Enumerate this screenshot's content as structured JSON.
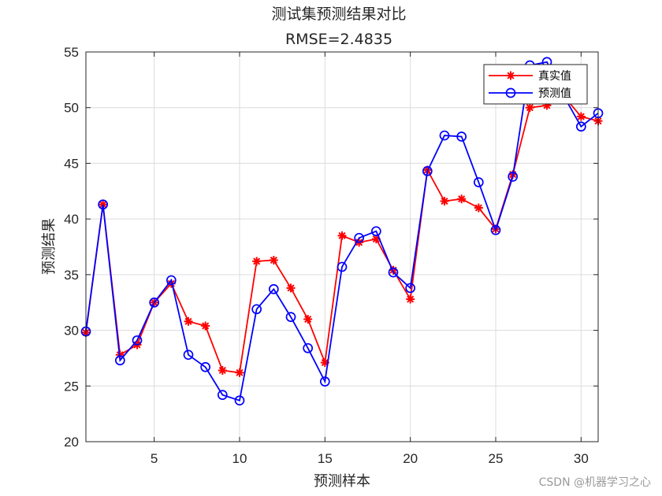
{
  "chart_data": {
    "type": "line",
    "title": "测试集预测结果对比",
    "subtitle": "RMSE=2.4835",
    "xlabel": "预测样本",
    "ylabel": "预测结果",
    "xlim": [
      1,
      31
    ],
    "ylim": [
      20,
      55
    ],
    "xticks": [
      5,
      10,
      15,
      20,
      25,
      30
    ],
    "yticks": [
      20,
      25,
      30,
      35,
      40,
      45,
      50,
      55
    ],
    "grid": true,
    "legend_position": "top-right",
    "x": [
      1,
      2,
      3,
      4,
      5,
      6,
      7,
      8,
      9,
      10,
      11,
      12,
      13,
      14,
      15,
      16,
      17,
      18,
      19,
      20,
      21,
      22,
      23,
      24,
      25,
      26,
      27,
      28,
      29,
      30,
      31
    ],
    "series": [
      {
        "name": "真实值",
        "color": "#ff0000",
        "marker": "asterisk",
        "values": [
          29.8,
          41.3,
          27.8,
          28.7,
          32.5,
          34.2,
          30.8,
          30.4,
          26.4,
          26.2,
          36.2,
          36.3,
          33.8,
          31.0,
          27.1,
          38.5,
          37.9,
          38.2,
          35.4,
          32.8,
          44.4,
          41.6,
          41.8,
          41.0,
          39.1,
          44.0,
          50.0,
          50.2,
          51.0,
          49.2,
          48.8
        ]
      },
      {
        "name": "预测值",
        "color": "#0000ff",
        "marker": "circle",
        "values": [
          29.9,
          41.3,
          27.3,
          29.1,
          32.5,
          34.5,
          27.8,
          26.7,
          24.2,
          23.7,
          31.9,
          33.7,
          31.2,
          28.4,
          25.4,
          35.7,
          38.3,
          38.9,
          35.2,
          33.8,
          44.3,
          47.5,
          47.4,
          43.3,
          39.0,
          43.8,
          53.8,
          54.1,
          51.0,
          48.3,
          49.5
        ]
      }
    ]
  },
  "watermark": "CSDN @机器学习之心"
}
